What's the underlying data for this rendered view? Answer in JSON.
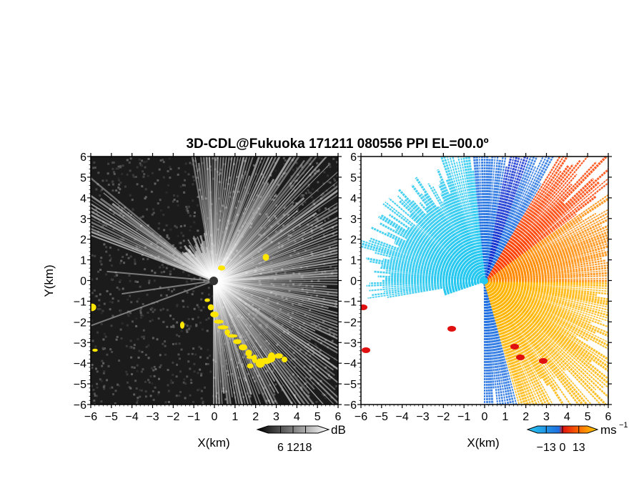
{
  "chart_data": [
    {
      "type": "heatmap",
      "panel": "reflectivity",
      "title": "3D-CDL@Fukuoka 171211 080556 PPI EL=00.0º",
      "xlabel": "X(km)",
      "ylabel": "Y(km)",
      "xlim": [
        -6,
        6
      ],
      "ylim": [
        -6,
        6
      ],
      "xticks": [
        "−6",
        "−5",
        "−4",
        "−3",
        "−2",
        "−1",
        "0",
        "1",
        "2",
        "3",
        "4",
        "5",
        "6"
      ],
      "yticks": [
        "6",
        "5",
        "4",
        "3",
        "2",
        "1",
        "0",
        "−1",
        "−2",
        "−3",
        "−4",
        "−5",
        "−6"
      ],
      "colorbar": {
        "unit": "dB",
        "tick_labels": [
          "6",
          "12",
          "18"
        ],
        "tick_values": [
          6,
          12,
          18
        ],
        "range": [
          0,
          24
        ],
        "colors": [
          "#000000",
          "#ffffff"
        ]
      },
      "overlay_color": "#ffe600"
    },
    {
      "type": "heatmap",
      "panel": "radial-velocity",
      "xlabel": "X(km)",
      "xlim": [
        -6,
        6
      ],
      "ylim": [
        -6,
        6
      ],
      "xticks": [
        "−6",
        "−5",
        "−4",
        "−3",
        "−2",
        "−1",
        "0",
        "1",
        "2",
        "3",
        "4",
        "5",
        "6"
      ],
      "yticks": [
        "6",
        "5",
        "4",
        "3",
        "2",
        "1",
        "0",
        "−1",
        "−2",
        "−3",
        "−4",
        "−5",
        "−6"
      ],
      "colorbar": {
        "unit": "ms",
        "unit_exponent": "−1",
        "tick_labels": [
          "−13",
          "0",
          "13"
        ],
        "tick_values": [
          -13,
          0,
          13
        ],
        "range": [
          -20,
          20
        ],
        "colors": [
          "#27c8f0",
          "#1e70e0",
          "#e01010",
          "#ff7000",
          "#ffd000"
        ]
      }
    }
  ]
}
